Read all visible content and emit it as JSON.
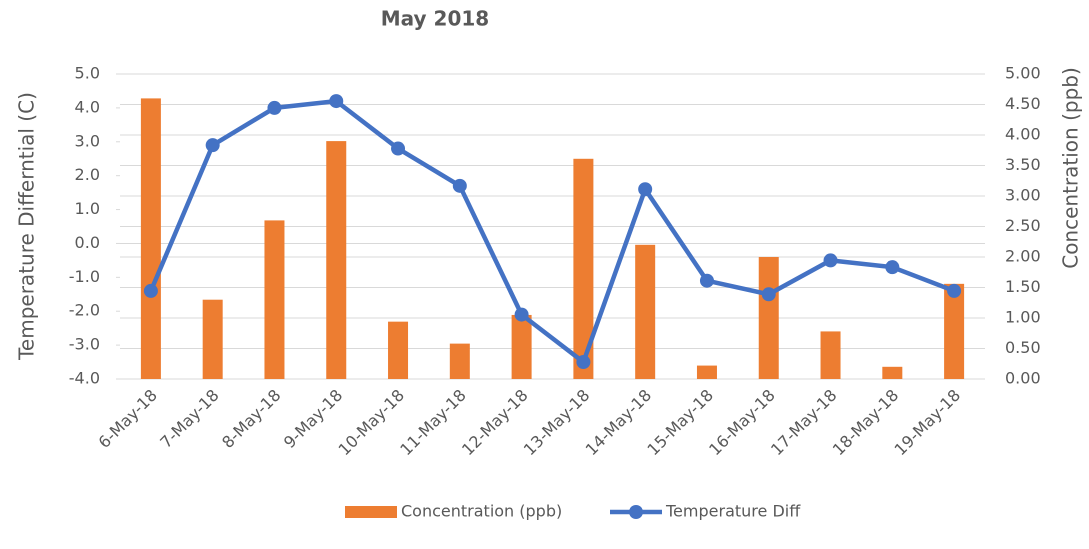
{
  "chart_data": {
    "type": "bar-line",
    "title": "May 2018",
    "y_label": "Temperature Differntial (C)",
    "y2_label": "Concentration (ppb)",
    "categories": [
      "6-May-18",
      "7-May-18",
      "8-May-18",
      "9-May-18",
      "10-May-18",
      "11-May-18",
      "12-May-18",
      "13-May-18",
      "14-May-18",
      "15-May-18",
      "16-May-18",
      "17-May-18",
      "18-May-18",
      "19-May-18"
    ],
    "series": [
      {
        "name": "Concentration (ppb)",
        "type": "bar",
        "axis": "y2",
        "color": "#ed7d31",
        "values": [
          4.6,
          1.3,
          2.6,
          3.9,
          0.94,
          0.58,
          1.05,
          3.61,
          2.2,
          0.22,
          2.0,
          0.78,
          0.2,
          1.56
        ]
      },
      {
        "name": "Temperature Diff",
        "type": "line",
        "axis": "y",
        "color": "#4472c4",
        "values": [
          -1.4,
          2.9,
          4.0,
          4.2,
          2.8,
          1.7,
          -2.1,
          -3.5,
          1.6,
          -1.1,
          -1.5,
          -0.5,
          -0.7,
          -1.4
        ]
      }
    ],
    "ylim": [
      -4,
      5
    ],
    "yticks": [
      {
        "value": -4,
        "label": "-4.0"
      },
      {
        "value": -3,
        "label": "-3.0"
      },
      {
        "value": -2,
        "label": "-2.0"
      },
      {
        "value": -1,
        "label": "-1.0"
      },
      {
        "value": 0,
        "label": "0.0"
      },
      {
        "value": 1,
        "label": "1.0"
      },
      {
        "value": 2,
        "label": "2.0"
      },
      {
        "value": 3,
        "label": "3.0"
      },
      {
        "value": 4,
        "label": "4.0"
      },
      {
        "value": 5,
        "label": "5.0"
      }
    ],
    "y2lim": [
      0,
      5
    ],
    "y2ticks": [
      {
        "value": 0,
        "label": "0.00"
      },
      {
        "value": 0.5,
        "label": "0.50"
      },
      {
        "value": 1,
        "label": "1.00"
      },
      {
        "value": 1.5,
        "label": "1.50"
      },
      {
        "value": 2,
        "label": "2.00"
      },
      {
        "value": 2.5,
        "label": "2.50"
      },
      {
        "value": 3,
        "label": "3.00"
      },
      {
        "value": 3.5,
        "label": "3.50"
      },
      {
        "value": 4,
        "label": "4.00"
      },
      {
        "value": 4.5,
        "label": "4.50"
      },
      {
        "value": 5,
        "label": "5.00"
      }
    ],
    "grid": true,
    "legend": "bottom"
  }
}
